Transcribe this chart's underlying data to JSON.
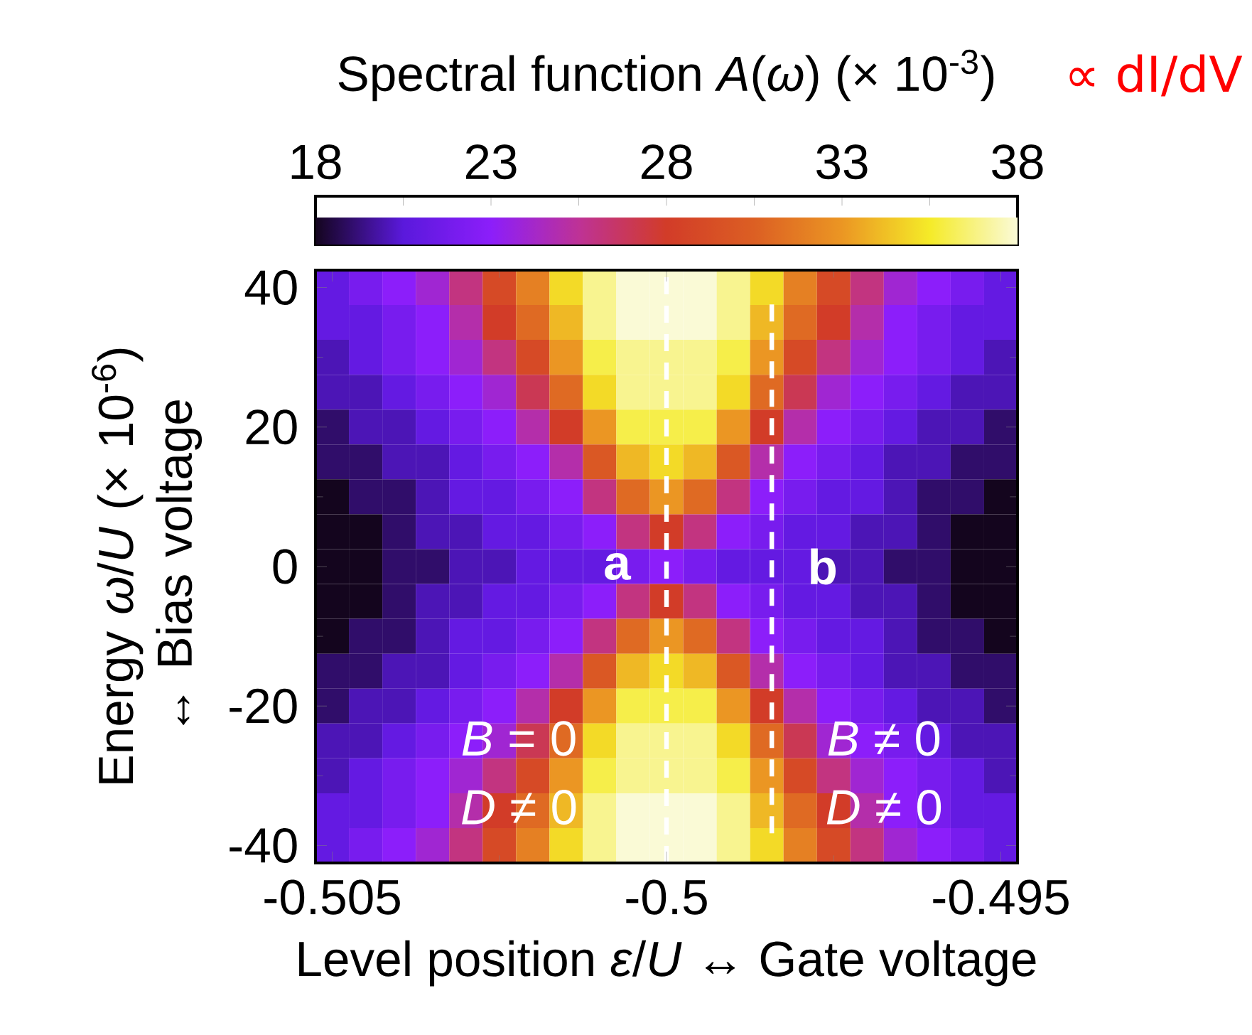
{
  "chart_data": {
    "type": "heatmap",
    "xlabel": "Level position *ε*/*U* ↔ Gate voltage",
    "ylabel": "Energy *ω*/*U* (× 10$^{-6}$) ↔ Bias voltage",
    "clabel": "Spectral function *A*(*ω*) (× 10$^{-3}$)",
    "annotations": [
      "*B* = 0",
      "*D* ≠ 0",
      "*B* ≠ 0",
      "*D* ≠ 0",
      "∝ dI/dV",
      "b"
    ],
    "categories": [
      "-0.505",
      null,
      null,
      null,
      null,
      null,
      null,
      null,
      null,
      null,
      "-0.5",
      null,
      null,
      null,
      null,
      null,
      null,
      null,
      null,
      null,
      "-0.495"
    ],
    "y_categories": [
      "40",
      null,
      null,
      null,
      "20",
      null,
      null,
      null,
      "0",
      null,
      null,
      null,
      "-20",
      null,
      null,
      null,
      "-40"
    ],
    "cells": [
      [
        21,
        22,
        23,
        24,
        26,
        29,
        32,
        35,
        37,
        38,
        38,
        38,
        37,
        35,
        32,
        29,
        26,
        24,
        23,
        22,
        21
      ],
      [
        21,
        21,
        22,
        23,
        25,
        28,
        31,
        34,
        37,
        38,
        38,
        38,
        37,
        34,
        31,
        28,
        25,
        23,
        22,
        21,
        21
      ],
      [
        20,
        21,
        22,
        23,
        24,
        26,
        29,
        33,
        36,
        37,
        37,
        37,
        36,
        33,
        29,
        26,
        24,
        23,
        22,
        21,
        20
      ],
      [
        20,
        20,
        21,
        22,
        23,
        24,
        27,
        31,
        35,
        37,
        37,
        37,
        35,
        31,
        27,
        24,
        23,
        22,
        21,
        20,
        20
      ],
      [
        19,
        20,
        20,
        21,
        22,
        23,
        25,
        28,
        33,
        36,
        36,
        36,
        33,
        28,
        25,
        23,
        22,
        21,
        20,
        20,
        19
      ],
      [
        19,
        19,
        20,
        20,
        21,
        22,
        23,
        25,
        30,
        34,
        35,
        34,
        30,
        25,
        23,
        22,
        21,
        20,
        20,
        19,
        19
      ],
      [
        18,
        19,
        19,
        20,
        21,
        21,
        22,
        23,
        26,
        31,
        33,
        31,
        26,
        23,
        22,
        21,
        21,
        20,
        19,
        19,
        18
      ],
      [
        18,
        18,
        19,
        20,
        20,
        21,
        21,
        22,
        23,
        26,
        28,
        26,
        23,
        22,
        21,
        21,
        20,
        20,
        19,
        18,
        18
      ],
      [
        18,
        18,
        19,
        19,
        20,
        20,
        21,
        21,
        21,
        22,
        23,
        22,
        21,
        21,
        21,
        20,
        20,
        19,
        19,
        18,
        18
      ],
      [
        18,
        18,
        19,
        20,
        20,
        21,
        21,
        22,
        23,
        26,
        28,
        26,
        23,
        22,
        21,
        21,
        20,
        20,
        19,
        18,
        18
      ],
      [
        18,
        19,
        19,
        20,
        21,
        21,
        22,
        23,
        26,
        31,
        33,
        31,
        26,
        23,
        22,
        21,
        21,
        20,
        19,
        19,
        18
      ],
      [
        19,
        19,
        20,
        20,
        21,
        22,
        23,
        25,
        30,
        34,
        35,
        34,
        30,
        25,
        23,
        22,
        21,
        20,
        20,
        19,
        19
      ],
      [
        19,
        20,
        20,
        21,
        22,
        23,
        25,
        28,
        33,
        36,
        36,
        36,
        33,
        28,
        25,
        23,
        22,
        21,
        20,
        20,
        19
      ],
      [
        20,
        20,
        21,
        22,
        23,
        24,
        27,
        31,
        35,
        37,
        37,
        37,
        35,
        31,
        27,
        24,
        23,
        22,
        21,
        20,
        20
      ],
      [
        20,
        21,
        22,
        23,
        24,
        26,
        29,
        33,
        36,
        37,
        37,
        37,
        36,
        33,
        29,
        26,
        24,
        23,
        22,
        21,
        20
      ],
      [
        21,
        21,
        22,
        23,
        25,
        28,
        31,
        34,
        37,
        38,
        38,
        38,
        37,
        34,
        31,
        28,
        25,
        23,
        22,
        21,
        21
      ],
      [
        21,
        22,
        23,
        24,
        26,
        29,
        32,
        35,
        37,
        38,
        38,
        38,
        37,
        35,
        32,
        29,
        26,
        24,
        23,
        22,
        21
      ]
    ],
    "clim": [
      18,
      38
    ],
    "cticks": [
      18,
      23,
      28,
      33,
      38
    ],
    "ref_lines": [
      {
        "axis": "x",
        "value": "-0.5",
        "label": "a",
        "color": "#ffffff",
        "line_style": "dashed"
      }
    ]
  }
}
